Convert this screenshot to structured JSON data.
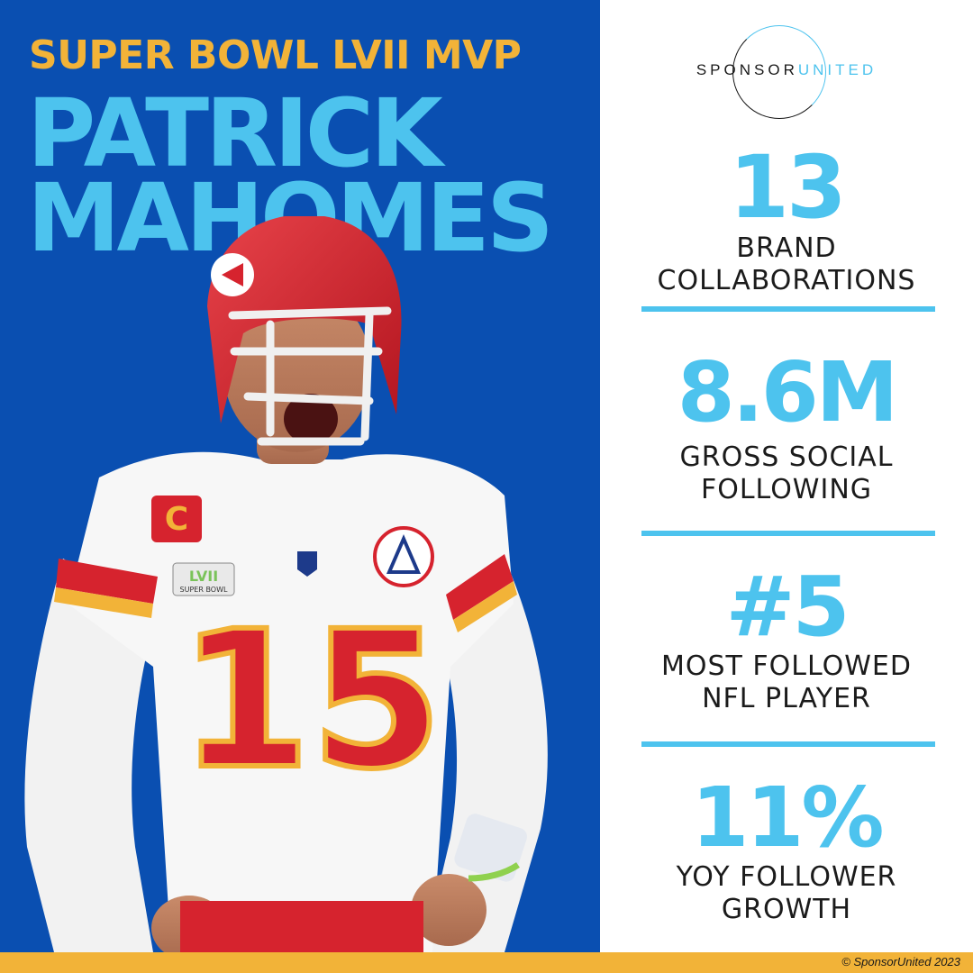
{
  "header": {
    "kicker": "SUPER BOWL LVII MVP",
    "name_line1": "PATRICK",
    "name_line2": "MAHOMES"
  },
  "player_photo": {
    "jersey_number": "15",
    "patch_text": "SUPER BOWL"
  },
  "logo": {
    "part1": "SPONSOR",
    "part2": "UNITED"
  },
  "stats": [
    {
      "value": "13",
      "label_line1": "BRAND",
      "label_line2": "COLLABORATIONS"
    },
    {
      "value": "8.6M",
      "label_line1": "GROSS SOCIAL",
      "label_line2": "FOLLOWING"
    },
    {
      "value": "#5",
      "label_line1": "MOST FOLLOWED",
      "label_line2": "NFL PLAYER"
    },
    {
      "value": "11%",
      "label_line1": "YOY FOLLOWER",
      "label_line2": "GROWTH"
    }
  ],
  "footer": {
    "copyright": "© SponsorUnited 2023"
  },
  "colors": {
    "panel_blue": "#0a4fb1",
    "accent_cyan": "#4dc3ee",
    "accent_gold": "#f2b338",
    "jersey_red": "#d6232e"
  }
}
